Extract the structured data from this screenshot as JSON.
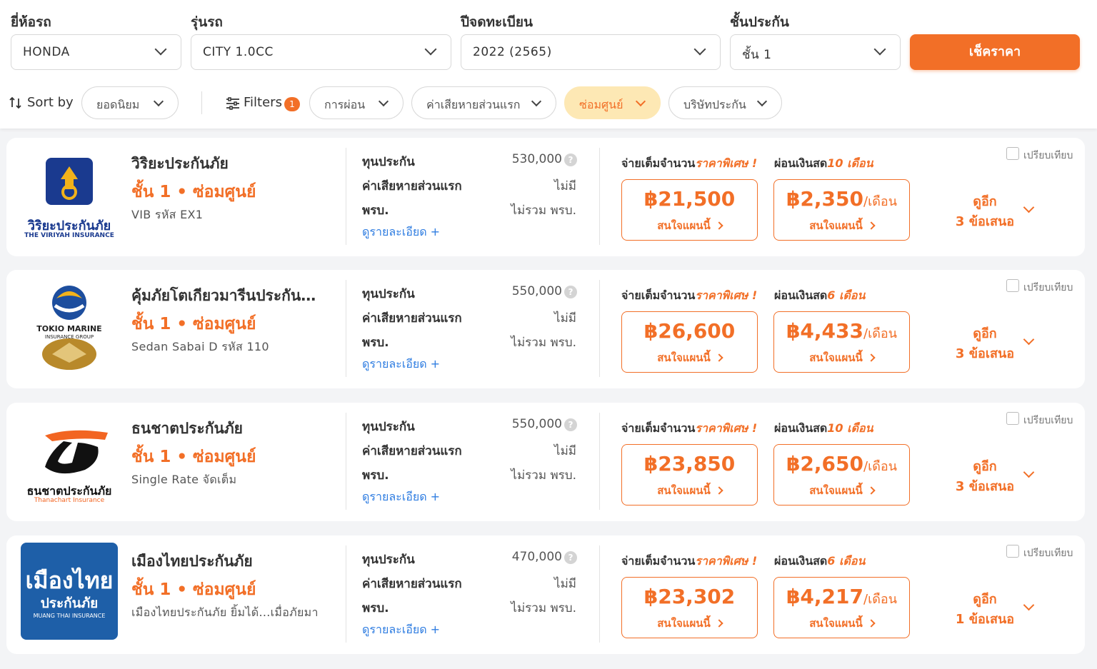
{
  "search": {
    "brand_label": "ยี่ห้อรถ",
    "brand_value": "HONDA",
    "model_label": "รุ่นรถ",
    "model_value": "CITY 1.0CC",
    "year_label": "ปีจดทะเบียน",
    "year_value": "2022 (2565)",
    "class_label": "ชั้นประกัน",
    "class_value": "ชั้น 1",
    "check_button": "เช็คราคา"
  },
  "filterbar": {
    "sort_label": "Sort by",
    "sort_value": "ยอดนิยม",
    "filters_label": "Filters",
    "filters_count": "1",
    "pills": [
      "การผ่อน",
      "ค่าเสียหายส่วนแรก",
      "ซ่อมศูนย์",
      "บริษัทประกัน"
    ],
    "active_pill": "ซ่อมศูนย์"
  },
  "common": {
    "sum_insured_label": "ทุนประกัน",
    "deductible_label": "ค่าเสียหายส่วนแรก",
    "compulsory_label": "พรบ.",
    "detail_link": "ดูรายละเอียด +",
    "full_pay_label": "จ่ายเต็มจำนวน",
    "special_price": "ราคาพิเศษ !",
    "installment_label": "ผ่อนเงินสด",
    "interested": "สนใจแผนนี้",
    "per_month": "/เดือน",
    "compare": "เปรียบเทียบ",
    "see_more": "ดูอีก"
  },
  "offers": [
    {
      "company": "วิริยะประกันภัย",
      "tier": "ชั้น 1 • ซ่อมศูนย์",
      "plan": "VIB รหัส EX1",
      "logo_text": "วิริยะประกันภัย",
      "logo_subtext": "THE VIRIYAH INSURANCE",
      "sum_insured": "530,000",
      "deductible": "ไม่มี",
      "compulsory": "ไม่รวม พรบ.",
      "months": "10 เดือน",
      "full_price": "฿21,500",
      "monthly_price": "฿2,350",
      "more_offers": "3 ข้อเสนอ"
    },
    {
      "company": "คุ้มภัยโตเกียวมารีนประกัน...",
      "tier": "ชั้น 1 • ซ่อมศูนย์",
      "plan": "Sedan Sabai D รหัส 110",
      "logo_text": "TOKIO MARINE",
      "logo_subtext": "INSURANCE GROUP",
      "sum_insured": "550,000",
      "deductible": "ไม่มี",
      "compulsory": "ไม่รวม พรบ.",
      "months": "6 เดือน",
      "full_price": "฿26,600",
      "monthly_price": "฿4,433",
      "more_offers": "3 ข้อเสนอ"
    },
    {
      "company": "ธนชาตประกันภัย",
      "tier": "ชั้น 1 • ซ่อมศูนย์",
      "plan": "Single Rate จัดเต็ม",
      "logo_text": "ธนชาตประกันภัย",
      "logo_subtext": "Thanachart Insurance",
      "sum_insured": "550,000",
      "deductible": "ไม่มี",
      "compulsory": "ไม่รวม พรบ.",
      "months": "10 เดือน",
      "full_price": "฿23,850",
      "monthly_price": "฿2,650",
      "more_offers": "3 ข้อเสนอ"
    },
    {
      "company": "เมืองไทยประกันภัย",
      "tier": "ชั้น 1 • ซ่อมศูนย์",
      "plan": "เมืองไทยประกันภัย ยิ้มได้...เมื่อภัยมา",
      "logo_text": "เมืองไทย",
      "logo_text2": "ประกันภัย",
      "logo_subtext": "MUANG THAI INSURANCE",
      "sum_insured": "470,000",
      "deductible": "ไม่มี",
      "compulsory": "ไม่รวม พรบ.",
      "months": "6 เดือน",
      "full_price": "฿23,302",
      "monthly_price": "฿4,217",
      "more_offers": "1 ข้อเสนอ"
    }
  ],
  "colors": {
    "accent": "#f26f27",
    "active_pill_bg": "#fde8b4",
    "link": "#2f7de1",
    "viriyah_blue": "#1a3a8f",
    "muangthai_blue": "#1e5fa8"
  }
}
